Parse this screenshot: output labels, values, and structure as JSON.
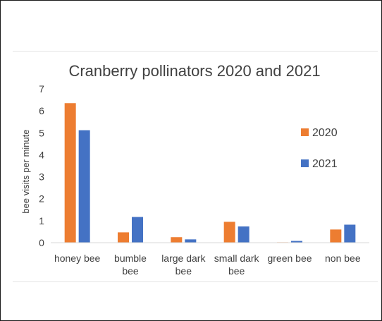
{
  "colors": {
    "series_2020": "#ed7d31",
    "series_2021": "#4472c4",
    "axis": "#d9d9d9",
    "text": "#404040"
  },
  "chart_data": {
    "type": "bar",
    "title": "Cranberry pollinators 2020 and 2021",
    "xlabel": "",
    "ylabel": "bee visits  per minute",
    "ylim": [
      0,
      7
    ],
    "yticks": [
      0,
      1,
      2,
      3,
      4,
      5,
      6,
      7
    ],
    "grid": false,
    "legend_position": "right",
    "categories": [
      [
        "honey bee"
      ],
      [
        "bumble",
        "bee"
      ],
      [
        "large dark",
        "bee"
      ],
      [
        "small dark",
        "bee"
      ],
      [
        "green bee"
      ],
      [
        "non bee"
      ]
    ],
    "series": [
      {
        "name": "2020",
        "color": "#ed7d31",
        "values": [
          6.35,
          0.47,
          0.25,
          0.95,
          0.02,
          0.6
        ]
      },
      {
        "name": "2021",
        "color": "#4472c4",
        "values": [
          5.12,
          1.17,
          0.15,
          0.74,
          0.08,
          0.82
        ]
      }
    ]
  }
}
